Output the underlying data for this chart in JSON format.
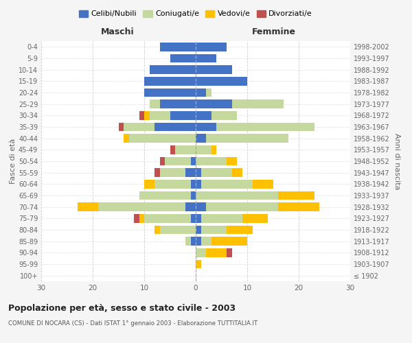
{
  "age_groups": [
    "100+",
    "95-99",
    "90-94",
    "85-89",
    "80-84",
    "75-79",
    "70-74",
    "65-69",
    "60-64",
    "55-59",
    "50-54",
    "45-49",
    "40-44",
    "35-39",
    "30-34",
    "25-29",
    "20-24",
    "15-19",
    "10-14",
    "5-9",
    "0-4"
  ],
  "birth_years": [
    "≤ 1902",
    "1903-1907",
    "1908-1912",
    "1913-1917",
    "1918-1922",
    "1923-1927",
    "1928-1932",
    "1933-1937",
    "1938-1942",
    "1943-1947",
    "1948-1952",
    "1953-1957",
    "1958-1962",
    "1963-1967",
    "1968-1972",
    "1973-1977",
    "1978-1982",
    "1983-1987",
    "1988-1992",
    "1993-1997",
    "1998-2002"
  ],
  "male_celibi": [
    0,
    0,
    0,
    1,
    0,
    1,
    2,
    1,
    1,
    2,
    1,
    0,
    0,
    8,
    5,
    7,
    10,
    10,
    9,
    5,
    7
  ],
  "male_coniugati": [
    0,
    0,
    0,
    1,
    7,
    9,
    17,
    10,
    7,
    5,
    5,
    4,
    13,
    6,
    4,
    2,
    0,
    0,
    0,
    0,
    0
  ],
  "male_vedovi": [
    0,
    0,
    0,
    0,
    1,
    1,
    4,
    0,
    2,
    0,
    0,
    0,
    1,
    0,
    1,
    0,
    0,
    0,
    0,
    0,
    0
  ],
  "male_divorziati": [
    0,
    0,
    0,
    0,
    0,
    1,
    0,
    0,
    0,
    1,
    1,
    1,
    0,
    1,
    1,
    0,
    0,
    0,
    0,
    0,
    0
  ],
  "female_celibi": [
    0,
    0,
    0,
    1,
    1,
    1,
    2,
    0,
    1,
    1,
    0,
    0,
    2,
    4,
    3,
    7,
    2,
    10,
    7,
    4,
    6
  ],
  "female_coniugati": [
    0,
    0,
    2,
    2,
    5,
    8,
    14,
    16,
    10,
    6,
    6,
    3,
    16,
    19,
    5,
    10,
    1,
    0,
    0,
    0,
    0
  ],
  "female_vedovi": [
    0,
    1,
    4,
    7,
    5,
    5,
    8,
    7,
    4,
    2,
    2,
    1,
    0,
    0,
    0,
    0,
    0,
    0,
    0,
    0,
    0
  ],
  "female_divorziati": [
    0,
    0,
    1,
    0,
    0,
    0,
    0,
    0,
    0,
    0,
    0,
    0,
    0,
    0,
    0,
    0,
    0,
    0,
    0,
    0,
    0
  ],
  "color_celibi": "#4472c4",
  "color_coniugati": "#c5d89d",
  "color_vedovi": "#ffc000",
  "color_divorziati": "#c0504d",
  "title": "Popolazione per età, sesso e stato civile - 2003",
  "subtitle": "COMUNE DI NOCARA (CS) - Dati ISTAT 1° gennaio 2003 - Elaborazione TUTTITALIA.IT",
  "ylabel": "Fasce di età",
  "ylabel_right": "Anni di nascita",
  "xlabel_left": "Maschi",
  "xlabel_right": "Femmine",
  "xlim": 30,
  "bg_color": "#f5f5f5",
  "plot_bg": "#ffffff"
}
